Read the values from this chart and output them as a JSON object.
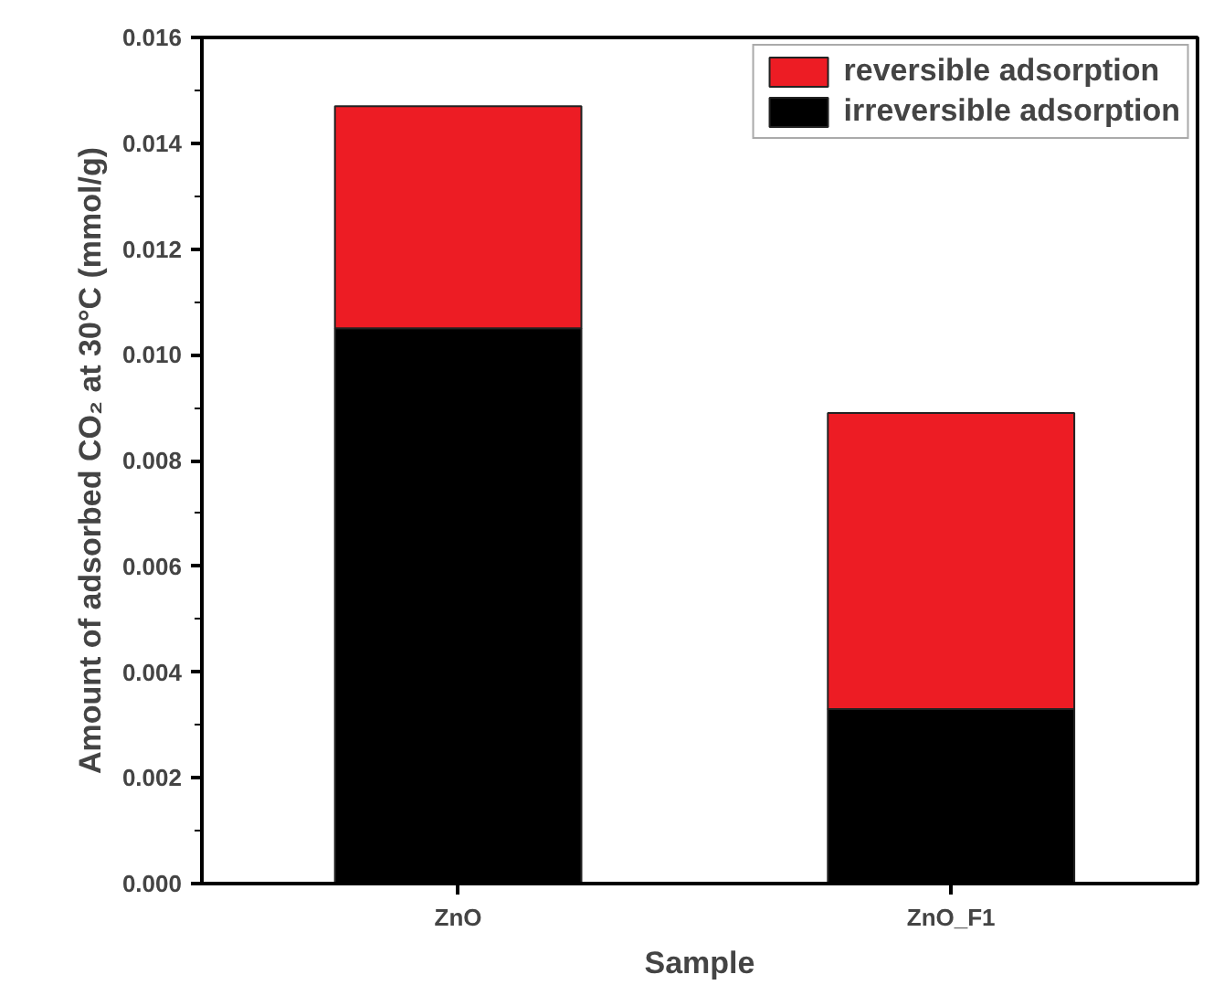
{
  "chart_data": {
    "type": "bar",
    "stacked": true,
    "xlabel": "Sample",
    "ylabel": "Amount of adsorbed CO₂ at 30°C (mmol/g)",
    "categories": [
      "ZnO",
      "ZnO_F1"
    ],
    "series": [
      {
        "name": "irreversible adsorption",
        "color": "#000000",
        "values": [
          0.0105,
          0.0033
        ]
      },
      {
        "name": "reversible adsorption",
        "color": "#ed1c24",
        "values": [
          0.0042,
          0.0056
        ]
      }
    ],
    "ylim": [
      0,
      0.016
    ],
    "yticks": [
      {
        "value": 0,
        "label": "0.000"
      },
      {
        "value": 0.002,
        "label": "0.002"
      },
      {
        "value": 0.004,
        "label": "0.004"
      },
      {
        "value": 0.006,
        "label": "0.006"
      },
      {
        "value": 0.008,
        "label": "0.008"
      },
      {
        "value": 0.01,
        "label": "0.010"
      },
      {
        "value": 0.012,
        "label": "0.012"
      },
      {
        "value": 0.014,
        "label": "0.014"
      },
      {
        "value": 0.016,
        "label": "0.016"
      }
    ],
    "grid": false,
    "legend": "top right"
  }
}
